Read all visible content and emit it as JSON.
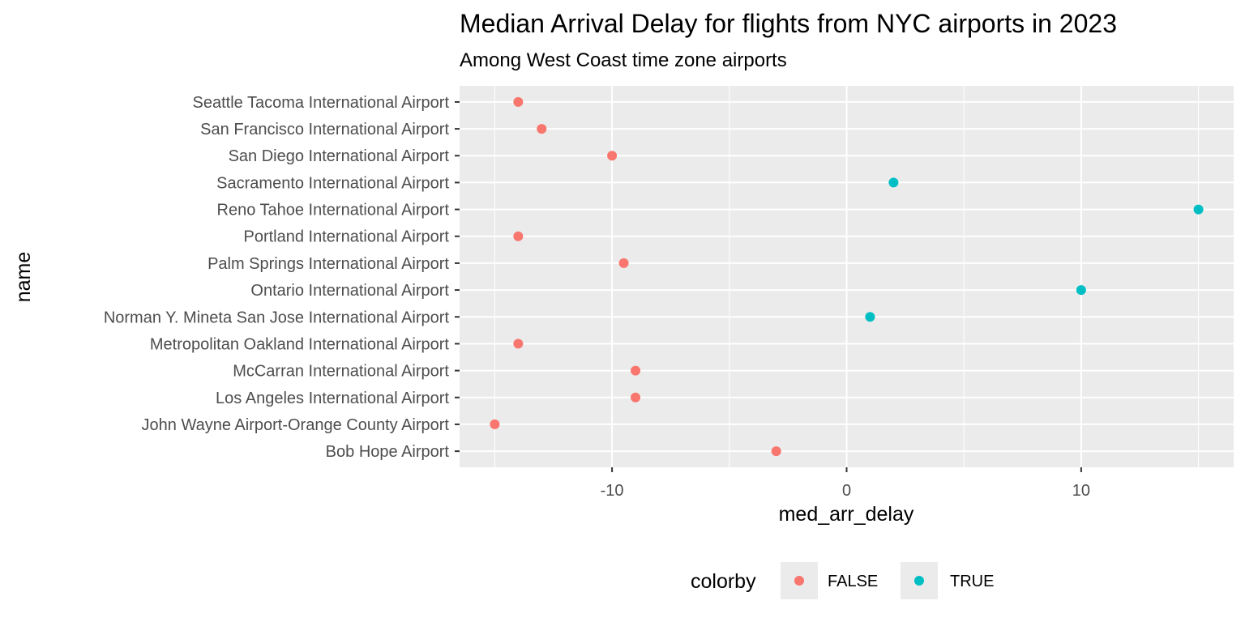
{
  "chart_data": {
    "type": "scatter",
    "title": "Median Arrival Delay for flights from NYC airports in 2023",
    "subtitle": "Among West Coast time zone airports",
    "xlabel": "med_arr_delay",
    "ylabel": "name",
    "xlim": [
      -16.5,
      16.5
    ],
    "x_ticks": [
      -10,
      0,
      10
    ],
    "x_tick_labels": [
      "-10",
      "0",
      "10"
    ],
    "x_minor_ticks": [
      -15,
      -5,
      5,
      15
    ],
    "grid": true,
    "legend": {
      "title": "colorby",
      "position": "bottom",
      "entries": [
        {
          "label": "FALSE",
          "color": "#F8766D"
        },
        {
          "label": "TRUE",
          "color": "#00BFC4"
        }
      ]
    },
    "categories": [
      "Seattle Tacoma International Airport",
      "San Francisco International Airport",
      "San Diego International Airport",
      "Sacramento International Airport",
      "Reno Tahoe International Airport",
      "Portland International Airport",
      "Palm Springs International Airport",
      "Ontario International Airport",
      "Norman Y. Mineta San Jose International Airport",
      "Metropolitan Oakland International Airport",
      "McCarran International Airport",
      "Los Angeles International Airport",
      "John Wayne Airport-Orange County Airport",
      "Bob Hope Airport"
    ],
    "points": [
      {
        "name": "Seattle Tacoma International Airport",
        "x": -14,
        "colorby": "FALSE"
      },
      {
        "name": "San Francisco International Airport",
        "x": -13,
        "colorby": "FALSE"
      },
      {
        "name": "San Diego International Airport",
        "x": -10,
        "colorby": "FALSE"
      },
      {
        "name": "Sacramento International Airport",
        "x": 2,
        "colorby": "TRUE"
      },
      {
        "name": "Reno Tahoe International Airport",
        "x": 15,
        "colorby": "TRUE"
      },
      {
        "name": "Portland International Airport",
        "x": -14,
        "colorby": "FALSE"
      },
      {
        "name": "Palm Springs International Airport",
        "x": -9.5,
        "colorby": "FALSE"
      },
      {
        "name": "Ontario International Airport",
        "x": 10,
        "colorby": "TRUE"
      },
      {
        "name": "Norman Y. Mineta San Jose International Airport",
        "x": 1,
        "colorby": "TRUE"
      },
      {
        "name": "Metropolitan Oakland International Airport",
        "x": -14,
        "colorby": "FALSE"
      },
      {
        "name": "McCarran International Airport",
        "x": -9,
        "colorby": "FALSE"
      },
      {
        "name": "Los Angeles International Airport",
        "x": -9,
        "colorby": "FALSE"
      },
      {
        "name": "John Wayne Airport-Orange County Airport",
        "x": -15,
        "colorby": "FALSE"
      },
      {
        "name": "Bob Hope Airport",
        "x": -3,
        "colorby": "FALSE"
      }
    ]
  }
}
